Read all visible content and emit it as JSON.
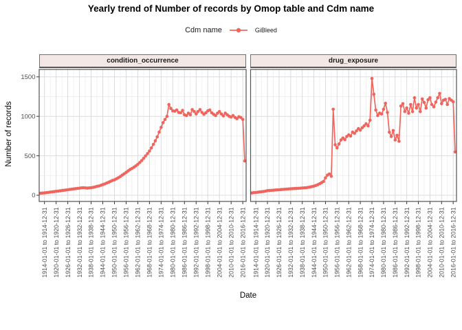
{
  "title": "Yearly trend of Number of records by Omop table and Cdm name",
  "legend": {
    "title": "Cdm name",
    "position": "top",
    "series": [
      {
        "label": "GiBleed",
        "color": "#F0645E"
      }
    ]
  },
  "axes": {
    "x_title": "Date",
    "y_title": "Number of records",
    "y_ticks": [
      0,
      500,
      1000,
      1500
    ],
    "ylim": [
      0,
      1550
    ]
  },
  "chart_data": {
    "type": "line",
    "title": "Yearly trend of Number of records by Omop table and Cdm name",
    "xlabel": "Date",
    "ylabel": "Number of records",
    "legend_position": "top",
    "grid": true,
    "year_start": 1912,
    "year_end": 2017,
    "x_tick_years": [
      1914,
      1920,
      1926,
      1932,
      1938,
      1944,
      1950,
      1956,
      1962,
      1968,
      1974,
      1980,
      1986,
      1992,
      1998,
      2004,
      2010,
      2016
    ],
    "x_tick_labels": [
      "1914-01-01 to 1914-12-31",
      "1920-01-01 to 1920-12-31",
      "1926-01-01 to 1926-12-31",
      "1932-01-01 to 1932-12-31",
      "1938-01-01 to 1938-12-31",
      "1944-01-01 to 1944-12-31",
      "1950-01-01 to 1950-12-31",
      "1956-01-01 to 1956-12-31",
      "1962-01-01 to 1962-12-31",
      "1968-01-01 to 1968-12-31",
      "1974-01-01 to 1974-12-31",
      "1980-01-01 to 1980-12-31",
      "1986-01-01 to 1986-12-31",
      "1992-01-01 to 1992-12-31",
      "1998-01-01 to 1998-12-31",
      "2004-01-01 to 2004-12-31",
      "2010-01-01 to 2010-12-31",
      "2016-01-01 to 2016-12-31"
    ],
    "y_ticks": [
      0,
      500,
      1000,
      1500
    ],
    "series_name": "GiBleed",
    "colors": {
      "series": "#F0645E",
      "strip_background": "#F4E8E7",
      "grid_major": "#DBDBDB",
      "grid_minor": "#EBEBEB",
      "panel_border": "#525252",
      "tick_label": "#4D4D4D"
    },
    "facets": [
      {
        "label": "condition_occurrence",
        "values": [
          25,
          28,
          30,
          33,
          36,
          40,
          43,
          46,
          50,
          52,
          56,
          60,
          63,
          66,
          70,
          74,
          77,
          80,
          84,
          87,
          90,
          94,
          96,
          93,
          91,
          93,
          96,
          100,
          105,
          112,
          118,
          126,
          135,
          144,
          154,
          165,
          176,
          188,
          195,
          208,
          222,
          238,
          255,
          272,
          290,
          308,
          326,
          340,
          355,
          372,
          392,
          415,
          440,
          468,
          498,
          528,
          560,
          600,
          645,
          690,
          740,
          800,
          860,
          920,
          960,
          1000,
          1150,
          1100,
          1070,
          1065,
          1080,
          1050,
          1045,
          1075,
          1020,
          1010,
          1040,
          1020,
          1085,
          1060,
          1030,
          1060,
          1085,
          1050,
          1025,
          1045,
          1070,
          1080,
          1045,
          1025,
          1010,
          1040,
          1060,
          1030,
          1005,
          1040,
          1020,
          1000,
          990,
          1010,
          985,
          970,
          995,
          985,
          960,
          435
        ]
      },
      {
        "label": "drug_exposure",
        "values": [
          30,
          33,
          35,
          38,
          42,
          45,
          48,
          52,
          58,
          60,
          62,
          64,
          66,
          68,
          70,
          72,
          74,
          76,
          78,
          80,
          82,
          84,
          85,
          86,
          88,
          90,
          92,
          94,
          96,
          100,
          104,
          110,
          116,
          124,
          134,
          146,
          160,
          175,
          220,
          255,
          270,
          240,
          1090,
          640,
          600,
          650,
          700,
          725,
          705,
          745,
          765,
          750,
          800,
          785,
          815,
          845,
          825,
          855,
          880,
          905,
          880,
          950,
          1480,
          1280,
          1080,
          1010,
          1040,
          1030,
          1090,
          1165,
          1050,
          800,
          745,
          820,
          700,
          760,
          685,
          1130,
          1160,
          1060,
          1105,
          1040,
          1150,
          1060,
          1235,
          1105,
          1150,
          1060,
          1220,
          1175,
          1105,
          1210,
          1235,
          1150,
          1120,
          1180,
          1235,
          1290,
          1160,
          1205,
          1215,
          1150,
          1225,
          1205,
          1185,
          550
        ]
      }
    ]
  }
}
